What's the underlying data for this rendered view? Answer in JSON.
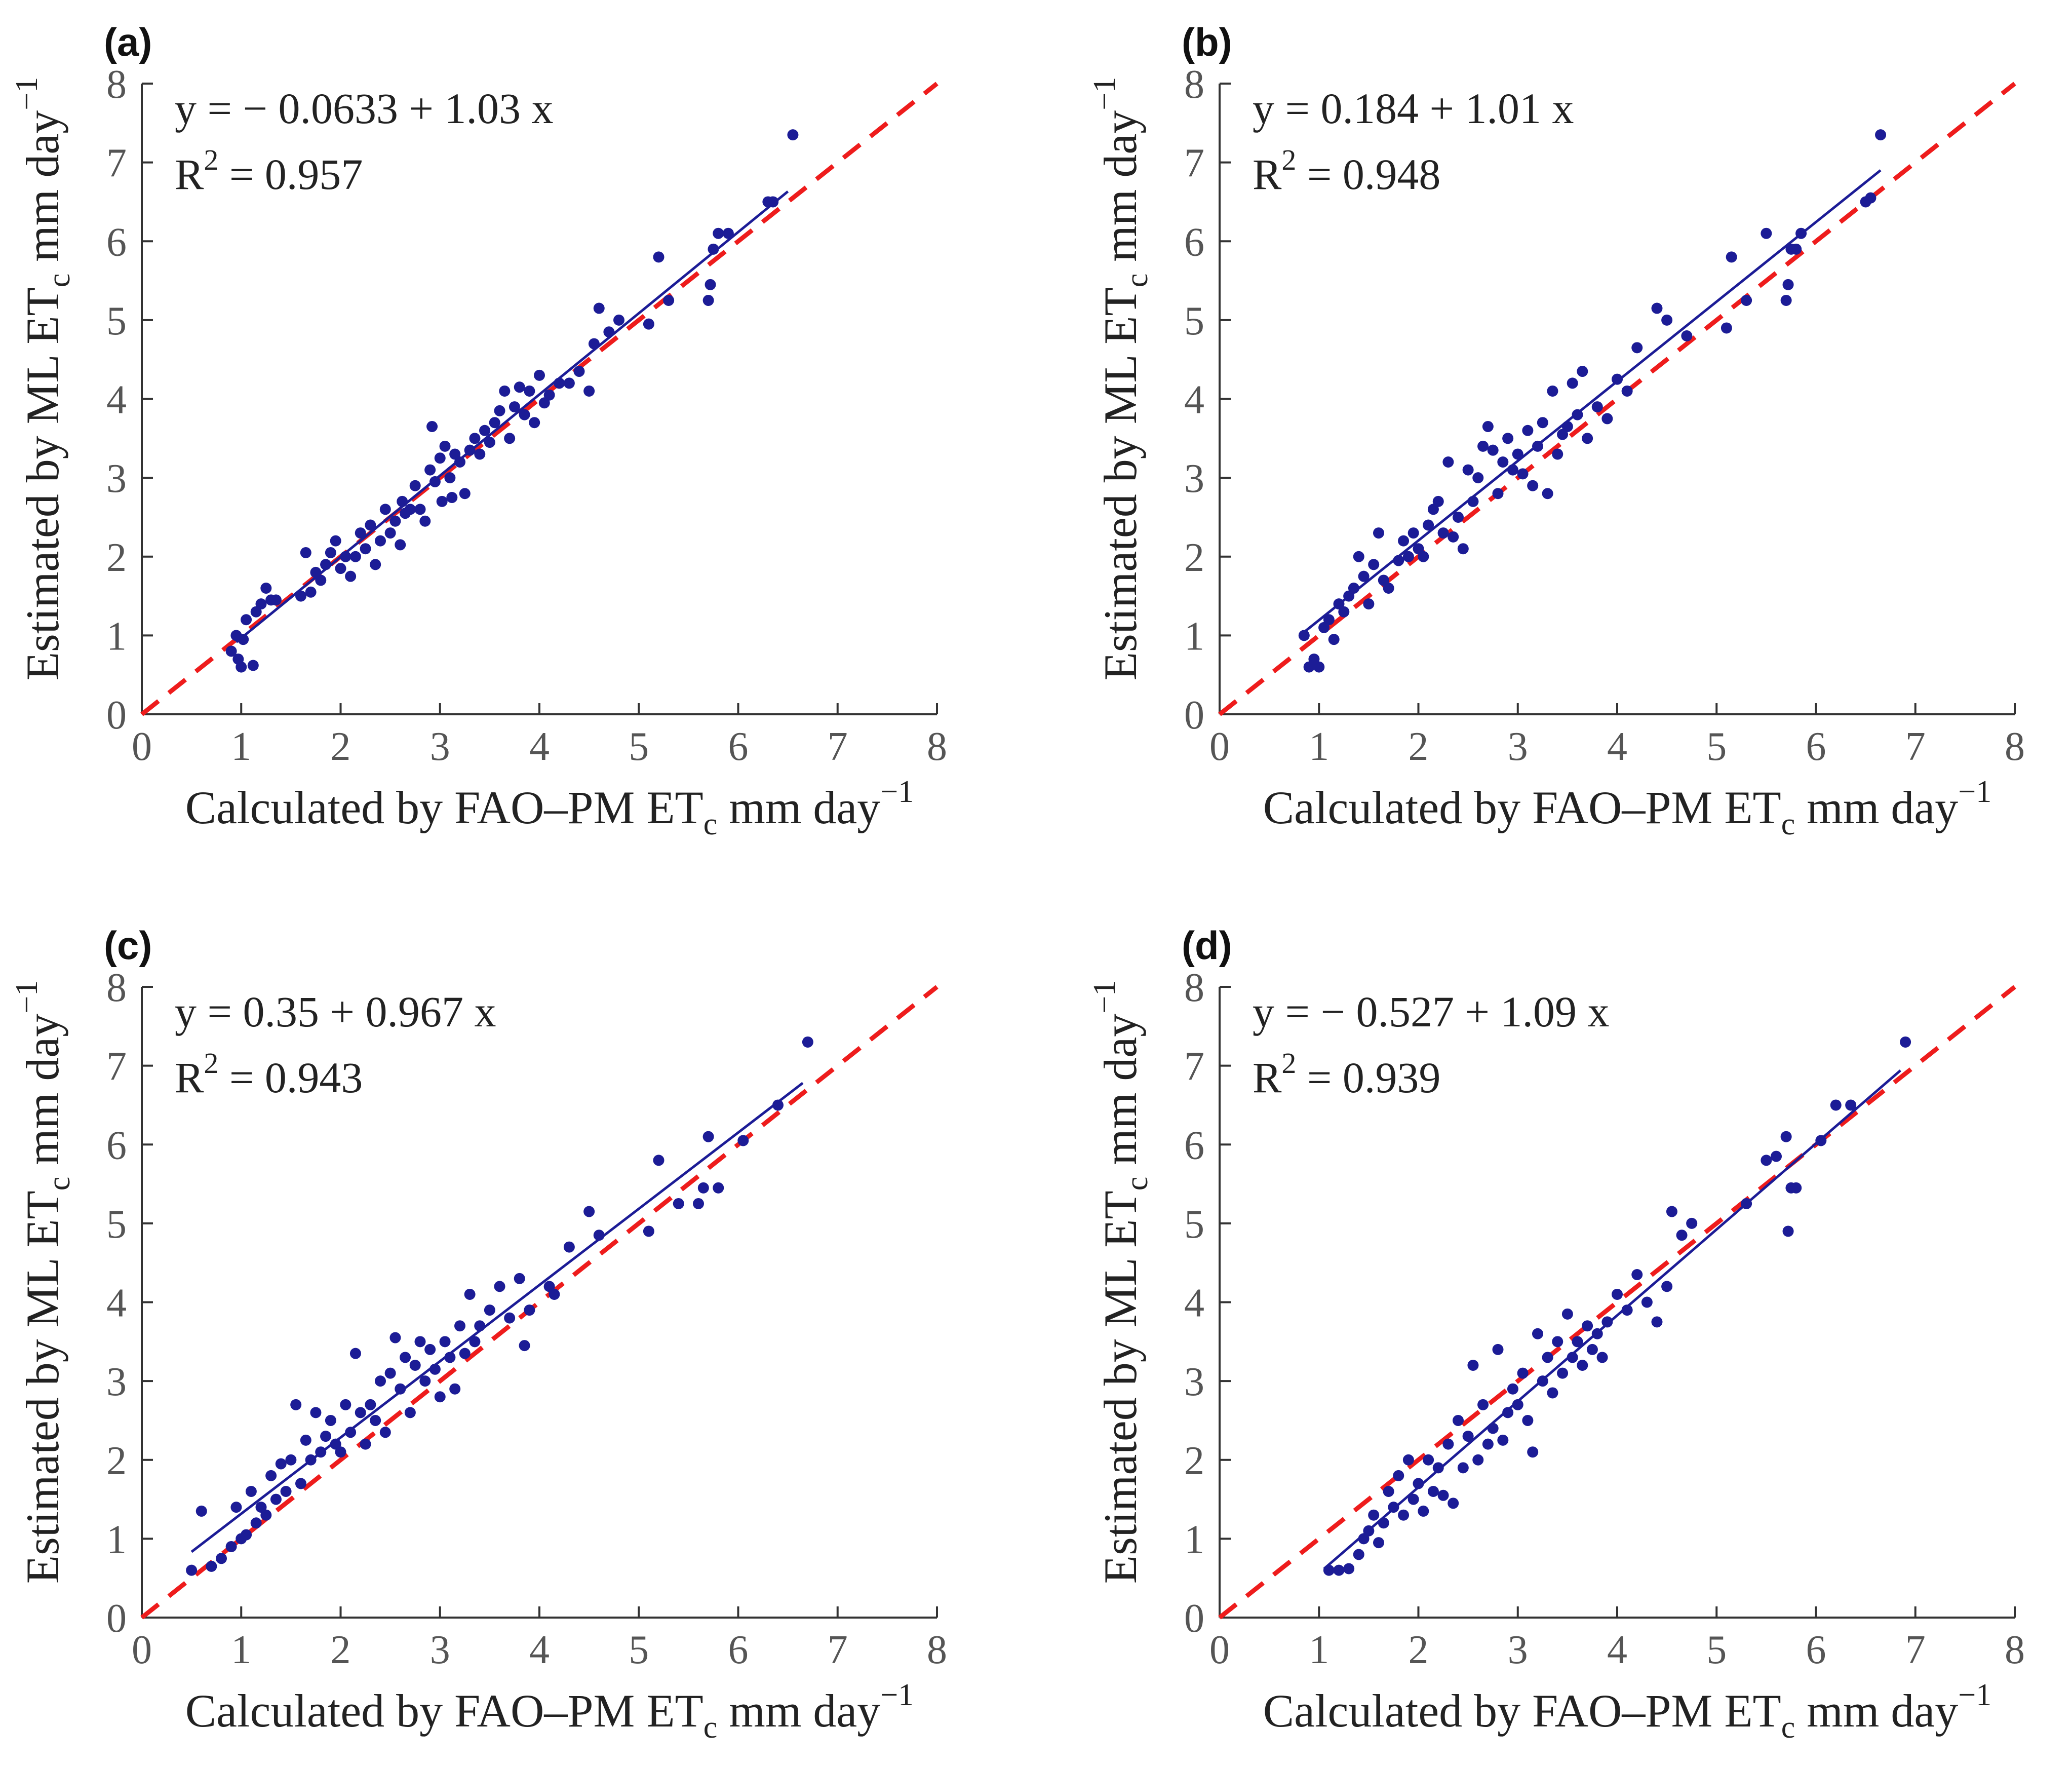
{
  "chart_data": [
    {
      "type": "scatter",
      "panel_label": "(a)",
      "equation": "y = − 0.0633 + 1.03 x",
      "r2_label": "R",
      "r2_sup": "2",
      "r2_value": "= 0.957",
      "fit": {
        "intercept": -0.0633,
        "slope": 1.03,
        "x_range": [
          0.95,
          6.5
        ]
      },
      "reference_line": "1:1",
      "xlabel": {
        "main": "Calculated by FAO–PM  ET",
        "sub": "c",
        "units": "  mm  day",
        "sup": "−1"
      },
      "ylabel": {
        "main": "Estimated by ML  ET",
        "sub": "c",
        "units": "  mm  day",
        "sup": "−1"
      },
      "xlim": [
        0,
        8
      ],
      "ylim": [
        0,
        8
      ],
      "ticks": [
        "0",
        "1",
        "2",
        "3",
        "4",
        "5",
        "6",
        "7",
        "8"
      ],
      "points": [
        [
          0.9,
          0.8
        ],
        [
          0.95,
          1.0
        ],
        [
          0.97,
          0.7
        ],
        [
          1.0,
          0.6
        ],
        [
          1.02,
          0.95
        ],
        [
          1.05,
          1.2
        ],
        [
          1.12,
          0.62
        ],
        [
          1.15,
          1.3
        ],
        [
          1.2,
          1.4
        ],
        [
          1.25,
          1.6
        ],
        [
          1.3,
          1.45
        ],
        [
          1.35,
          1.45
        ],
        [
          1.6,
          1.5
        ],
        [
          1.65,
          2.05
        ],
        [
          1.7,
          1.55
        ],
        [
          1.75,
          1.8
        ],
        [
          1.8,
          1.7
        ],
        [
          1.85,
          1.9
        ],
        [
          1.9,
          2.05
        ],
        [
          1.95,
          2.2
        ],
        [
          2.0,
          1.85
        ],
        [
          2.05,
          2.0
        ],
        [
          2.1,
          1.75
        ],
        [
          2.15,
          2.0
        ],
        [
          2.2,
          2.3
        ],
        [
          2.25,
          2.1
        ],
        [
          2.3,
          2.4
        ],
        [
          2.35,
          1.9
        ],
        [
          2.4,
          2.2
        ],
        [
          2.45,
          2.6
        ],
        [
          2.5,
          2.3
        ],
        [
          2.55,
          2.45
        ],
        [
          2.6,
          2.15
        ],
        [
          2.62,
          2.7
        ],
        [
          2.65,
          2.55
        ],
        [
          2.7,
          2.6
        ],
        [
          2.75,
          2.9
        ],
        [
          2.8,
          2.6
        ],
        [
          2.85,
          2.45
        ],
        [
          2.9,
          3.1
        ],
        [
          2.92,
          3.65
        ],
        [
          2.95,
          2.95
        ],
        [
          3.0,
          3.25
        ],
        [
          3.02,
          2.7
        ],
        [
          3.05,
          3.4
        ],
        [
          3.1,
          3.0
        ],
        [
          3.12,
          2.75
        ],
        [
          3.15,
          3.3
        ],
        [
          3.2,
          3.2
        ],
        [
          3.25,
          2.8
        ],
        [
          3.3,
          3.35
        ],
        [
          3.35,
          3.5
        ],
        [
          3.4,
          3.3
        ],
        [
          3.45,
          3.6
        ],
        [
          3.5,
          3.45
        ],
        [
          3.55,
          3.7
        ],
        [
          3.6,
          3.85
        ],
        [
          3.65,
          4.1
        ],
        [
          3.7,
          3.5
        ],
        [
          3.75,
          3.9
        ],
        [
          3.8,
          4.15
        ],
        [
          3.85,
          3.8
        ],
        [
          3.9,
          4.1
        ],
        [
          3.95,
          3.7
        ],
        [
          4.0,
          4.3
        ],
        [
          4.05,
          3.95
        ],
        [
          4.1,
          4.05
        ],
        [
          4.2,
          4.2
        ],
        [
          4.3,
          4.2
        ],
        [
          4.4,
          4.35
        ],
        [
          4.5,
          4.1
        ],
        [
          4.55,
          4.7
        ],
        [
          4.6,
          5.15
        ],
        [
          4.7,
          4.85
        ],
        [
          4.8,
          5.0
        ],
        [
          5.1,
          4.95
        ],
        [
          5.2,
          5.8
        ],
        [
          5.3,
          5.25
        ],
        [
          5.7,
          5.25
        ],
        [
          5.72,
          5.45
        ],
        [
          5.75,
          5.9
        ],
        [
          5.8,
          6.1
        ],
        [
          5.9,
          6.1
        ],
        [
          6.3,
          6.5
        ],
        [
          6.35,
          6.5
        ],
        [
          6.55,
          7.35
        ]
      ]
    },
    {
      "type": "scatter",
      "panel_label": "(b)",
      "equation": "y = 0.184 + 1.01 x",
      "r2_label": "R",
      "r2_sup": "2",
      "r2_value": "= 0.948",
      "fit": {
        "intercept": 0.184,
        "slope": 1.01,
        "x_range": [
          0.85,
          6.65
        ]
      },
      "reference_line": "1:1",
      "xlabel": {
        "main": "Calculated by FAO–PM  ET",
        "sub": "c",
        "units": "  mm  day",
        "sup": "−1"
      },
      "ylabel": {
        "main": "Estimated by ML  ET",
        "sub": "c",
        "units": "  mm  day",
        "sup": "−1"
      },
      "xlim": [
        0,
        8
      ],
      "ylim": [
        0,
        8
      ],
      "ticks": [
        "0",
        "1",
        "2",
        "3",
        "4",
        "5",
        "6",
        "7",
        "8"
      ],
      "points": [
        [
          0.85,
          1.0
        ],
        [
          0.9,
          0.6
        ],
        [
          0.95,
          0.7
        ],
        [
          1.0,
          0.6
        ],
        [
          1.05,
          1.1
        ],
        [
          1.1,
          1.2
        ],
        [
          1.15,
          0.95
        ],
        [
          1.2,
          1.4
        ],
        [
          1.25,
          1.3
        ],
        [
          1.3,
          1.5
        ],
        [
          1.35,
          1.6
        ],
        [
          1.4,
          2.0
        ],
        [
          1.45,
          1.75
        ],
        [
          1.5,
          1.4
        ],
        [
          1.55,
          1.9
        ],
        [
          1.6,
          2.3
        ],
        [
          1.65,
          1.7
        ],
        [
          1.7,
          1.6
        ],
        [
          1.8,
          1.95
        ],
        [
          1.85,
          2.2
        ],
        [
          1.9,
          2.0
        ],
        [
          1.95,
          2.3
        ],
        [
          2.0,
          2.1
        ],
        [
          2.05,
          2.0
        ],
        [
          2.1,
          2.4
        ],
        [
          2.15,
          2.6
        ],
        [
          2.2,
          2.7
        ],
        [
          2.25,
          2.3
        ],
        [
          2.3,
          3.2
        ],
        [
          2.35,
          2.25
        ],
        [
          2.4,
          2.5
        ],
        [
          2.45,
          2.1
        ],
        [
          2.5,
          3.1
        ],
        [
          2.55,
          2.7
        ],
        [
          2.6,
          3.0
        ],
        [
          2.65,
          3.4
        ],
        [
          2.7,
          3.65
        ],
        [
          2.75,
          3.35
        ],
        [
          2.8,
          2.8
        ],
        [
          2.85,
          3.2
        ],
        [
          2.9,
          3.5
        ],
        [
          2.95,
          3.1
        ],
        [
          3.0,
          3.3
        ],
        [
          3.05,
          3.05
        ],
        [
          3.1,
          3.6
        ],
        [
          3.15,
          2.9
        ],
        [
          3.2,
          3.4
        ],
        [
          3.25,
          3.7
        ],
        [
          3.3,
          2.8
        ],
        [
          3.35,
          4.1
        ],
        [
          3.4,
          3.3
        ],
        [
          3.45,
          3.55
        ],
        [
          3.5,
          3.65
        ],
        [
          3.55,
          4.2
        ],
        [
          3.6,
          3.8
        ],
        [
          3.65,
          4.35
        ],
        [
          3.7,
          3.5
        ],
        [
          3.8,
          3.9
        ],
        [
          3.9,
          3.75
        ],
        [
          4.0,
          4.25
        ],
        [
          4.1,
          4.1
        ],
        [
          4.2,
          4.65
        ],
        [
          4.4,
          5.15
        ],
        [
          4.5,
          5.0
        ],
        [
          4.7,
          4.8
        ],
        [
          5.1,
          4.9
        ],
        [
          5.15,
          5.8
        ],
        [
          5.3,
          5.25
        ],
        [
          5.5,
          6.1
        ],
        [
          5.7,
          5.25
        ],
        [
          5.72,
          5.45
        ],
        [
          5.75,
          5.9
        ],
        [
          5.8,
          5.9
        ],
        [
          5.85,
          6.1
        ],
        [
          6.5,
          6.5
        ],
        [
          6.55,
          6.55
        ],
        [
          6.65,
          7.35
        ]
      ]
    },
    {
      "type": "scatter",
      "panel_label": "(c)",
      "equation": "y = 0.35 + 0.967 x",
      "r2_label": "R",
      "r2_sup": "2",
      "r2_value": "= 0.943",
      "fit": {
        "intercept": 0.35,
        "slope": 0.967,
        "x_range": [
          0.5,
          6.65
        ]
      },
      "reference_line": "1:1",
      "xlabel": {
        "main": "Calculated by FAO–PM  ET",
        "sub": "c",
        "units": "  mm  day",
        "sup": "−1"
      },
      "ylabel": {
        "main": "Estimated by ML  ET",
        "sub": "c",
        "units": "  mm  day",
        "sup": "−1"
      },
      "xlim": [
        0,
        8
      ],
      "ylim": [
        0,
        8
      ],
      "ticks": [
        "0",
        "1",
        "2",
        "3",
        "4",
        "5",
        "6",
        "7",
        "8"
      ],
      "points": [
        [
          0.5,
          0.6
        ],
        [
          0.6,
          1.35
        ],
        [
          0.7,
          0.65
        ],
        [
          0.8,
          0.75
        ],
        [
          0.9,
          0.9
        ],
        [
          0.95,
          1.4
        ],
        [
          1.0,
          1.0
        ],
        [
          1.05,
          1.05
        ],
        [
          1.1,
          1.6
        ],
        [
          1.15,
          1.2
        ],
        [
          1.2,
          1.4
        ],
        [
          1.25,
          1.3
        ],
        [
          1.3,
          1.8
        ],
        [
          1.35,
          1.5
        ],
        [
          1.4,
          1.95
        ],
        [
          1.45,
          1.6
        ],
        [
          1.5,
          2.0
        ],
        [
          1.55,
          2.7
        ],
        [
          1.6,
          1.7
        ],
        [
          1.65,
          2.25
        ],
        [
          1.7,
          2.0
        ],
        [
          1.75,
          2.6
        ],
        [
          1.8,
          2.1
        ],
        [
          1.85,
          2.3
        ],
        [
          1.9,
          2.5
        ],
        [
          1.95,
          2.2
        ],
        [
          2.0,
          2.1
        ],
        [
          2.05,
          2.7
        ],
        [
          2.1,
          2.35
        ],
        [
          2.15,
          3.35
        ],
        [
          2.2,
          2.6
        ],
        [
          2.25,
          2.2
        ],
        [
          2.3,
          2.7
        ],
        [
          2.35,
          2.5
        ],
        [
          2.4,
          3.0
        ],
        [
          2.45,
          2.35
        ],
        [
          2.5,
          3.1
        ],
        [
          2.55,
          3.55
        ],
        [
          2.6,
          2.9
        ],
        [
          2.65,
          3.3
        ],
        [
          2.7,
          2.6
        ],
        [
          2.75,
          3.2
        ],
        [
          2.8,
          3.5
        ],
        [
          2.85,
          3.0
        ],
        [
          2.9,
          3.4
        ],
        [
          2.95,
          3.15
        ],
        [
          3.0,
          2.8
        ],
        [
          3.05,
          3.5
        ],
        [
          3.1,
          3.3
        ],
        [
          3.15,
          2.9
        ],
        [
          3.2,
          3.7
        ],
        [
          3.25,
          3.35
        ],
        [
          3.3,
          4.1
        ],
        [
          3.35,
          3.5
        ],
        [
          3.4,
          3.7
        ],
        [
          3.5,
          3.9
        ],
        [
          3.6,
          4.2
        ],
        [
          3.7,
          3.8
        ],
        [
          3.8,
          4.3
        ],
        [
          3.85,
          3.45
        ],
        [
          3.9,
          3.9
        ],
        [
          4.1,
          4.2
        ],
        [
          4.15,
          4.1
        ],
        [
          4.3,
          4.7
        ],
        [
          4.5,
          5.15
        ],
        [
          4.6,
          4.85
        ],
        [
          5.1,
          4.9
        ],
        [
          5.2,
          5.8
        ],
        [
          5.4,
          5.25
        ],
        [
          5.6,
          5.25
        ],
        [
          5.65,
          5.45
        ],
        [
          5.7,
          6.1
        ],
        [
          5.8,
          5.45
        ],
        [
          6.05,
          6.05
        ],
        [
          6.4,
          6.5
        ],
        [
          6.7,
          7.3
        ]
      ]
    },
    {
      "type": "scatter",
      "panel_label": "(d)",
      "equation": "y = − 0.527 + 1.09 x",
      "r2_label": "R",
      "r2_sup": "2",
      "r2_value": "= 0.939",
      "fit": {
        "intercept": -0.527,
        "slope": 1.09,
        "x_range": [
          1.05,
          6.85
        ]
      },
      "reference_line": "1:1",
      "xlabel": {
        "main": "Calculated by FAO–PM  ET",
        "sub": "c",
        "units": "  mm  day",
        "sup": "−1"
      },
      "ylabel": {
        "main": "Estimated by ML  ET",
        "sub": "c",
        "units": "  mm  day",
        "sup": "−1"
      },
      "xlim": [
        0,
        8
      ],
      "ylim": [
        0,
        8
      ],
      "ticks": [
        "0",
        "1",
        "2",
        "3",
        "4",
        "5",
        "6",
        "7",
        "8"
      ],
      "points": [
        [
          1.1,
          0.6
        ],
        [
          1.2,
          0.6
        ],
        [
          1.3,
          0.62
        ],
        [
          1.4,
          0.8
        ],
        [
          1.45,
          1.0
        ],
        [
          1.5,
          1.1
        ],
        [
          1.55,
          1.3
        ],
        [
          1.6,
          0.95
        ],
        [
          1.65,
          1.2
        ],
        [
          1.7,
          1.6
        ],
        [
          1.75,
          1.4
        ],
        [
          1.8,
          1.8
        ],
        [
          1.85,
          1.3
        ],
        [
          1.9,
          2.0
        ],
        [
          1.95,
          1.5
        ],
        [
          2.0,
          1.7
        ],
        [
          2.05,
          1.35
        ],
        [
          2.1,
          2.0
        ],
        [
          2.15,
          1.6
        ],
        [
          2.2,
          1.9
        ],
        [
          2.25,
          1.55
        ],
        [
          2.3,
          2.2
        ],
        [
          2.35,
          1.45
        ],
        [
          2.4,
          2.5
        ],
        [
          2.45,
          1.9
        ],
        [
          2.5,
          2.3
        ],
        [
          2.55,
          3.2
        ],
        [
          2.6,
          2.0
        ],
        [
          2.65,
          2.7
        ],
        [
          2.7,
          2.2
        ],
        [
          2.75,
          2.4
        ],
        [
          2.8,
          3.4
        ],
        [
          2.85,
          2.25
        ],
        [
          2.9,
          2.6
        ],
        [
          2.95,
          2.9
        ],
        [
          3.0,
          2.7
        ],
        [
          3.05,
          3.1
        ],
        [
          3.1,
          2.5
        ],
        [
          3.15,
          2.1
        ],
        [
          3.2,
          3.6
        ],
        [
          3.25,
          3.0
        ],
        [
          3.3,
          3.3
        ],
        [
          3.35,
          2.85
        ],
        [
          3.4,
          3.5
        ],
        [
          3.45,
          3.1
        ],
        [
          3.5,
          3.85
        ],
        [
          3.55,
          3.3
        ],
        [
          3.6,
          3.5
        ],
        [
          3.65,
          3.2
        ],
        [
          3.7,
          3.7
        ],
        [
          3.75,
          3.4
        ],
        [
          3.8,
          3.6
        ],
        [
          3.85,
          3.3
        ],
        [
          3.9,
          3.75
        ],
        [
          4.0,
          4.1
        ],
        [
          4.1,
          3.9
        ],
        [
          4.2,
          4.35
        ],
        [
          4.3,
          4.0
        ],
        [
          4.4,
          3.75
        ],
        [
          4.5,
          4.2
        ],
        [
          4.55,
          5.15
        ],
        [
          4.65,
          4.85
        ],
        [
          4.75,
          5.0
        ],
        [
          5.3,
          5.25
        ],
        [
          5.5,
          5.8
        ],
        [
          5.6,
          5.85
        ],
        [
          5.7,
          6.1
        ],
        [
          5.72,
          4.9
        ],
        [
          5.75,
          5.45
        ],
        [
          5.8,
          5.45
        ],
        [
          6.05,
          6.05
        ],
        [
          6.2,
          6.5
        ],
        [
          6.35,
          6.5
        ],
        [
          6.9,
          7.3
        ]
      ]
    }
  ],
  "colors": {
    "points": "#1c1c96",
    "fit_line": "#1c1c96",
    "reference_line": "#ee1c1c",
    "axes": "#333333",
    "tick_labels": "#555555"
  }
}
